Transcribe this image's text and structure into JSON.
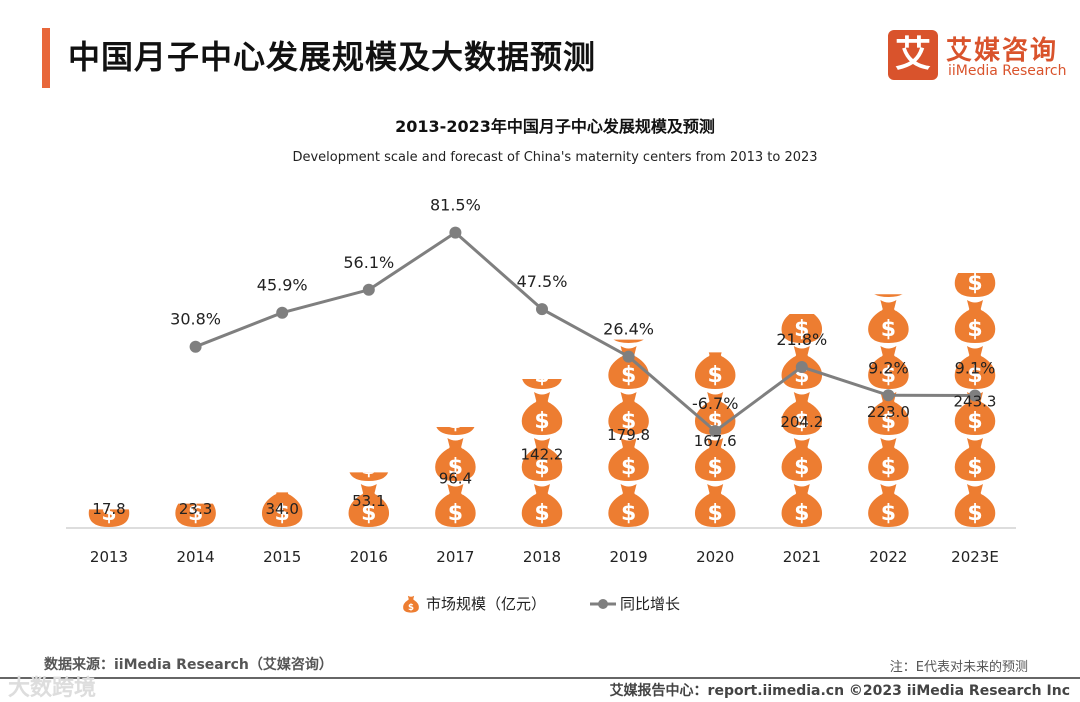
{
  "header": {
    "title": "中国月子中心发展规模及大数据预测"
  },
  "logo": {
    "mark": "艾",
    "cn": "艾媒咨询",
    "en": "iiMedia Research"
  },
  "footer": {
    "source": "数据来源：iiMedia Research（艾媒咨询）",
    "note": "注：E代表对未来的预测",
    "report_center": "艾媒报告中心：report.iimedia.cn   ©2023  iiMedia Research  Inc",
    "watermark": "大数跨境"
  },
  "colors": {
    "bar": "#ed7d31",
    "line": "#7f7f7f",
    "accent": "#e8673a"
  },
  "chart_data": {
    "type": "bar+line",
    "title": "2013-2023年中国月子中心发展规模及预测",
    "subtitle": "Development scale and forecast of China's maternity centers from 2013 to 2023",
    "categories": [
      "2013",
      "2014",
      "2015",
      "2016",
      "2017",
      "2018",
      "2019",
      "2020",
      "2021",
      "2022",
      "2023E"
    ],
    "series": [
      {
        "name": "市场规模（亿元）",
        "type": "pictograph-bar",
        "values": [
          17.8,
          23.3,
          34.0,
          53.1,
          96.4,
          142.2,
          179.8,
          167.6,
          204.2,
          223.0,
          243.3
        ],
        "labels": [
          "17.8",
          "23.3",
          "34.0",
          "53.1",
          "96.4",
          "142.2",
          "179.8",
          "167.6",
          "204.2",
          "223.0",
          "243.3"
        ]
      },
      {
        "name": "同比增长",
        "type": "line",
        "values": [
          null,
          30.8,
          45.9,
          56.1,
          81.5,
          47.5,
          26.4,
          -6.7,
          21.8,
          9.2,
          9.1
        ],
        "labels": [
          "",
          "30.8%",
          "45.9%",
          "56.1%",
          "81.5%",
          "47.5%",
          "26.4%",
          "-6.7%",
          "21.8%",
          "9.2%",
          "9.1%"
        ]
      }
    ],
    "legend": {
      "position": "bottom"
    }
  }
}
